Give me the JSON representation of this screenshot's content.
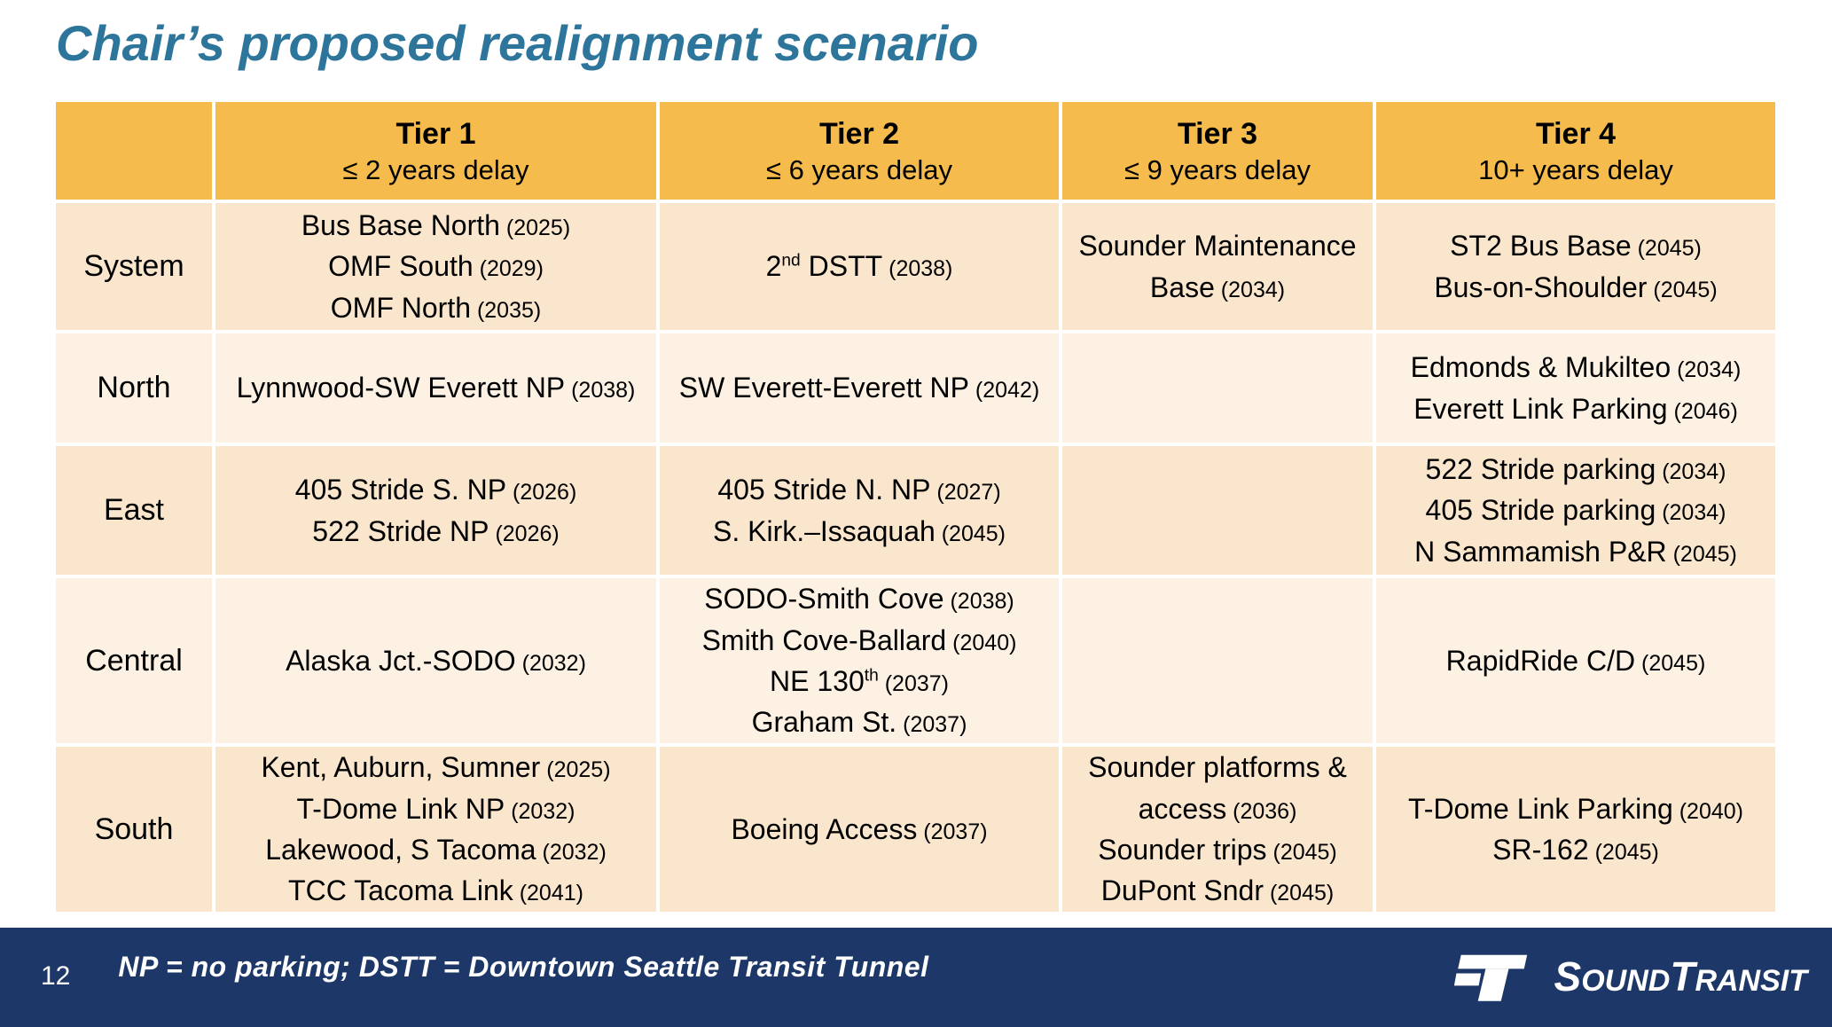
{
  "slide": {
    "title": "Chair’s proposed realignment scenario",
    "page_number": "12",
    "footnote": "NP = no parking; DSTT = Downtown Seattle Transit Tunnel",
    "logo_parts": [
      "S",
      "OUND",
      "T",
      "RANSIT"
    ]
  },
  "colors": {
    "header_orange": "#F5BB4C",
    "row_dark": "#FAE5CD",
    "row_light": "#FCF1E3",
    "footer_navy": "#1D3868",
    "title_blue": "#2E759B"
  },
  "table": {
    "columns": [
      {
        "title": "",
        "subtitle": ""
      },
      {
        "title": "Tier 1",
        "subtitle": "≤ 2 years delay"
      },
      {
        "title": "Tier 2",
        "subtitle": "≤ 6 years delay"
      },
      {
        "title": "Tier 3",
        "subtitle": "≤ 9 years delay"
      },
      {
        "title": "Tier 4",
        "subtitle": "10+ years delay"
      }
    ],
    "rows": [
      {
        "label": "System",
        "cells": [
          [
            {
              "t": "Bus Base North",
              "y": "2025"
            },
            {
              "t": "OMF South",
              "y": "2029"
            },
            {
              "t": "OMF North",
              "y": "2035"
            }
          ],
          [
            {
              "t": "2[nd] DSTT",
              "y": "2038"
            }
          ],
          [
            {
              "t": "Sounder Maintenance Base",
              "y": "2034"
            }
          ],
          [
            {
              "t": "ST2 Bus Base",
              "y": "2045"
            },
            {
              "t": "Bus-on-Shoulder",
              "y": "2045"
            }
          ]
        ]
      },
      {
        "label": "North",
        "cells": [
          [
            {
              "t": "Lynnwood-SW Everett NP",
              "y": "2038"
            }
          ],
          [
            {
              "t": "SW Everett-Everett NP",
              "y": "2042"
            }
          ],
          [],
          [
            {
              "t": "Edmonds & Mukilteo",
              "y": "2034"
            },
            {
              "t": "Everett Link Parking",
              "y": "2046"
            }
          ]
        ]
      },
      {
        "label": "East",
        "cells": [
          [
            {
              "t": "405 Stride S. NP",
              "y": "2026"
            },
            {
              "t": "522 Stride NP",
              "y": "2026"
            }
          ],
          [
            {
              "t": "405 Stride N. NP",
              "y": "2027"
            },
            {
              "t": "S. Kirk.–Issaquah",
              "y": "2045"
            }
          ],
          [],
          [
            {
              "t": "522 Stride parking",
              "y": "2034"
            },
            {
              "t": "405 Stride parking",
              "y": "2034"
            },
            {
              "t": "N Sammamish P&R",
              "y": "2045"
            }
          ]
        ]
      },
      {
        "label": "Central",
        "cells": [
          [
            {
              "t": "Alaska Jct.-SODO",
              "y": "2032"
            }
          ],
          [
            {
              "t": "SODO-Smith Cove",
              "y": "2038"
            },
            {
              "t": "Smith Cove-Ballard",
              "y": "2040"
            },
            {
              "t": "NE 130[th]",
              "y": "2037"
            },
            {
              "t": "Graham St.",
              "y": "2037"
            }
          ],
          [],
          [
            {
              "t": "RapidRide C/D",
              "y": "2045"
            }
          ]
        ]
      },
      {
        "label": "South",
        "cells": [
          [
            {
              "t": "Kent, Auburn, Sumner",
              "y": "2025"
            },
            {
              "t": "T-Dome Link NP",
              "y": "2032"
            },
            {
              "t": "Lakewood, S Tacoma",
              "y": "2032"
            },
            {
              "t": "TCC Tacoma Link",
              "y": "2041"
            }
          ],
          [
            {
              "t": "Boeing Access",
              "y": "2037"
            }
          ],
          [
            {
              "t": "Sounder platforms & access",
              "y": "2036"
            },
            {
              "t": "Sounder trips",
              "y": "2045"
            },
            {
              "t": "DuPont Sndr",
              "y": "2045"
            }
          ],
          [
            {
              "t": "T-Dome Link Parking",
              "y": "2040"
            },
            {
              "t": "SR-162",
              "y": "2045"
            }
          ]
        ]
      }
    ]
  }
}
